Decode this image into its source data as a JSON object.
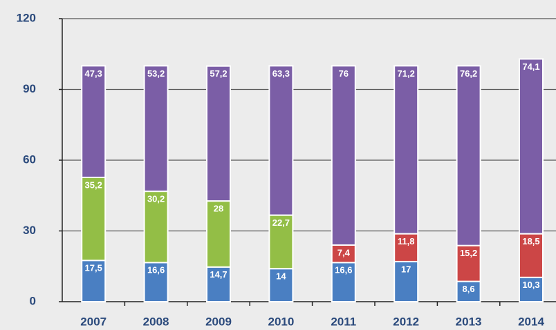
{
  "chart_data": {
    "type": "bar",
    "stacked": true,
    "categories": [
      "2007",
      "2008",
      "2009",
      "2010",
      "2011",
      "2012",
      "2013",
      "2014"
    ],
    "series": [
      {
        "color": "#4a7fc2",
        "values": [
          17.5,
          16.6,
          14.7,
          14,
          16.6,
          17,
          8.6,
          10.3
        ],
        "value_labels": [
          "17,5",
          "16,6",
          "14,7",
          "14",
          "16,6",
          "17",
          "8,6",
          "10,3"
        ]
      },
      {
        "color": "#93be46",
        "values": [
          35.2,
          30.2,
          28,
          22.7,
          null,
          null,
          null,
          null
        ],
        "value_labels": [
          "35,2",
          "30,2",
          "28",
          "22,7",
          null,
          null,
          null,
          null
        ]
      },
      {
        "color": "#cc4646",
        "values": [
          null,
          null,
          null,
          null,
          7.4,
          11.8,
          15.2,
          18.5
        ],
        "value_labels": [
          null,
          null,
          null,
          null,
          "7,4",
          "11,8",
          "15,2",
          "18,5"
        ]
      },
      {
        "color": "#7b5ea6",
        "values": [
          47.3,
          53.2,
          57.2,
          63.3,
          76,
          71.2,
          76.2,
          74.1
        ],
        "value_labels": [
          "47,3",
          "53,2",
          "57,2",
          "63,3",
          "76",
          "71,2",
          "76,2",
          "74,1"
        ]
      }
    ],
    "ylim": [
      0,
      120
    ],
    "yticks": [
      0,
      30,
      60,
      90,
      120
    ],
    "grid": true
  }
}
